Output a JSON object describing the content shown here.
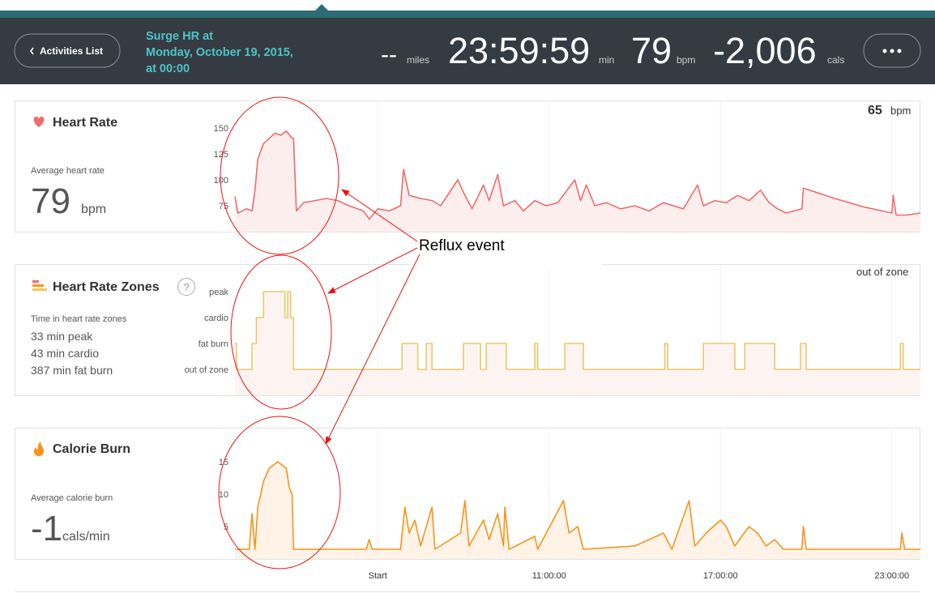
{
  "header": {
    "back_button": "Activities List",
    "title_lines": [
      "Surge HR at",
      "Monday, October 19, 2015,",
      "at 00:00"
    ],
    "stats": [
      {
        "value": "--",
        "unit": "miles"
      },
      {
        "value": "23:59:59",
        "unit": "min"
      },
      {
        "value": "79",
        "unit": "bpm"
      },
      {
        "value": "-2,006",
        "unit": "cals"
      }
    ]
  },
  "time_axis": {
    "xlim": [
      0,
      24
    ],
    "xticks": [
      {
        "value": 5,
        "label": "Start"
      },
      {
        "value": 11,
        "label": "11:00:00"
      },
      {
        "value": 17,
        "label": "17:00:00"
      },
      {
        "value": 23,
        "label": "23:00:00"
      }
    ]
  },
  "panels": [
    {
      "title": "Heart Rate",
      "subtitle": "Average heart rate",
      "summary_value": "79",
      "summary_unit": "bpm",
      "current_value": "65",
      "current_unit": "bpm",
      "chart": {
        "type": "line",
        "color": "#f06b6b",
        "fill": "#fdeeee",
        "ylim": [
          50,
          175
        ],
        "yticks": [
          75,
          100,
          125,
          150
        ],
        "x": [
          0,
          0.1,
          0.4,
          0.6,
          0.7,
          0.8,
          1.0,
          1.2,
          1.4,
          1.6,
          1.8,
          2.0,
          2.05,
          2.15,
          2.4,
          2.8,
          3.2,
          3.6,
          4.0,
          4.5,
          4.7,
          5.0,
          5.4,
          5.8,
          5.9,
          6.1,
          6.5,
          6.9,
          7.2,
          7.8,
          8.0,
          8.3,
          8.7,
          8.9,
          9.2,
          9.4,
          9.8,
          10.1,
          10.5,
          10.9,
          11.3,
          11.9,
          12.1,
          12.3,
          12.6,
          13.0,
          13.5,
          14.0,
          14.5,
          15.0,
          15.7,
          16.2,
          16.4,
          16.8,
          17.2,
          17.6,
          18.0,
          18.4,
          18.7,
          19.0,
          19.3,
          19.85,
          19.9,
          21.0,
          22.0,
          23.0,
          23.05,
          23.15,
          23.5,
          24.0
        ],
        "values": [
          84,
          68,
          72,
          70,
          90,
          120,
          135,
          140,
          145,
          143,
          147,
          140,
          140,
          70,
          78,
          80,
          82,
          80,
          75,
          70,
          62,
          72,
          70,
          75,
          110,
          85,
          82,
          80,
          75,
          100,
          88,
          72,
          95,
          80,
          105,
          75,
          80,
          70,
          80,
          75,
          78,
          100,
          80,
          95,
          75,
          78,
          72,
          75,
          70,
          78,
          72,
          95,
          75,
          80,
          78,
          85,
          80,
          90,
          78,
          72,
          68,
          72,
          92,
          82,
          74,
          68,
          85,
          66,
          66,
          68
        ]
      }
    },
    {
      "title": "Heart Rate Zones",
      "help_icon": "?",
      "subtitle": "Time in heart rate zones",
      "summary_lines": [
        "33 min peak",
        "43 min cardio",
        "387 min fat burn"
      ],
      "current_label": "out of zone",
      "chart": {
        "type": "step",
        "color": "#e8c86a",
        "fill": "#fdf4f2",
        "ylim": [
          -1,
          4
        ],
        "yticks": [
          {
            "value": 0,
            "label": "out of zone"
          },
          {
            "value": 1,
            "label": "fat burn"
          },
          {
            "value": 2,
            "label": "cardio"
          },
          {
            "value": 3,
            "label": "peak"
          }
        ],
        "x": [
          0,
          0.05,
          0.05,
          0.6,
          0.6,
          0.75,
          0.75,
          1.0,
          1.0,
          1.75,
          1.75,
          1.85,
          1.85,
          1.95,
          1.95,
          2.05,
          2.05,
          5.85,
          5.85,
          6.4,
          6.4,
          6.7,
          6.7,
          6.9,
          6.9,
          8.0,
          8.0,
          8.6,
          8.6,
          8.8,
          8.8,
          9.5,
          9.5,
          10.5,
          10.5,
          10.6,
          10.6,
          11.55,
          11.55,
          12.2,
          12.2,
          15.05,
          15.05,
          15.15,
          15.15,
          16.4,
          16.4,
          17.5,
          17.5,
          17.85,
          17.85,
          18.9,
          18.9,
          19.8,
          19.8,
          20.0,
          20.0,
          23.3,
          23.3,
          23.4,
          23.4,
          24
        ],
        "values": [
          1,
          1,
          0,
          0,
          1,
          1,
          2,
          2,
          3,
          3,
          2,
          2,
          3,
          3,
          2,
          2,
          0,
          0,
          1,
          1,
          0,
          0,
          1,
          1,
          0,
          0,
          1,
          1,
          0,
          0,
          1,
          1,
          0,
          0,
          1,
          1,
          0,
          0,
          1,
          1,
          0,
          0,
          1,
          1,
          0,
          0,
          1,
          1,
          0,
          0,
          1,
          1,
          0,
          0,
          1,
          1,
          0,
          0,
          1,
          1,
          0,
          0
        ]
      }
    },
    {
      "title": "Calorie Burn",
      "subtitle": "Average calorie burn",
      "summary_value": "-1",
      "summary_unit": "cals/min",
      "chart": {
        "type": "line",
        "color": "#f7941d",
        "fill": "#fef3e6",
        "ylim": [
          0,
          20
        ],
        "yticks": [
          5,
          10,
          15
        ],
        "x": [
          0,
          0.5,
          0.6,
          0.7,
          0.8,
          1.0,
          1.2,
          1.5,
          1.8,
          1.9,
          2.0,
          2.05,
          4.6,
          4.7,
          4.8,
          5.8,
          5.95,
          6.1,
          6.3,
          6.5,
          6.9,
          7.0,
          7.9,
          8.05,
          8.2,
          8.7,
          8.9,
          9.2,
          9.4,
          9.45,
          9.6,
          10.5,
          10.6,
          11.5,
          11.7,
          12.0,
          12.2,
          14.0,
          14.5,
          15.0,
          15.3,
          15.9,
          16.1,
          16.5,
          17.0,
          17.2,
          17.5,
          18.0,
          18.3,
          18.6,
          18.9,
          19.2,
          19.85,
          19.9,
          20.0,
          23.3,
          23.35,
          23.45,
          24
        ],
        "values": [
          1.5,
          1.5,
          7,
          1.5,
          8,
          12,
          14,
          15,
          14,
          11,
          10,
          1.5,
          1.5,
          3,
          1.5,
          1.5,
          8,
          4,
          6,
          2,
          8,
          1.5,
          4,
          9,
          2,
          6,
          3,
          7,
          2,
          8,
          1.5,
          3.5,
          1.5,
          9,
          4,
          5,
          1.5,
          2,
          3,
          4,
          1.5,
          9,
          2,
          4,
          6,
          5,
          2,
          5,
          4,
          2,
          3,
          1.5,
          1.5,
          5,
          1.5,
          1.5,
          4,
          1.5,
          1.5
        ]
      }
    }
  ],
  "annotation": {
    "text": "Reflux event"
  }
}
